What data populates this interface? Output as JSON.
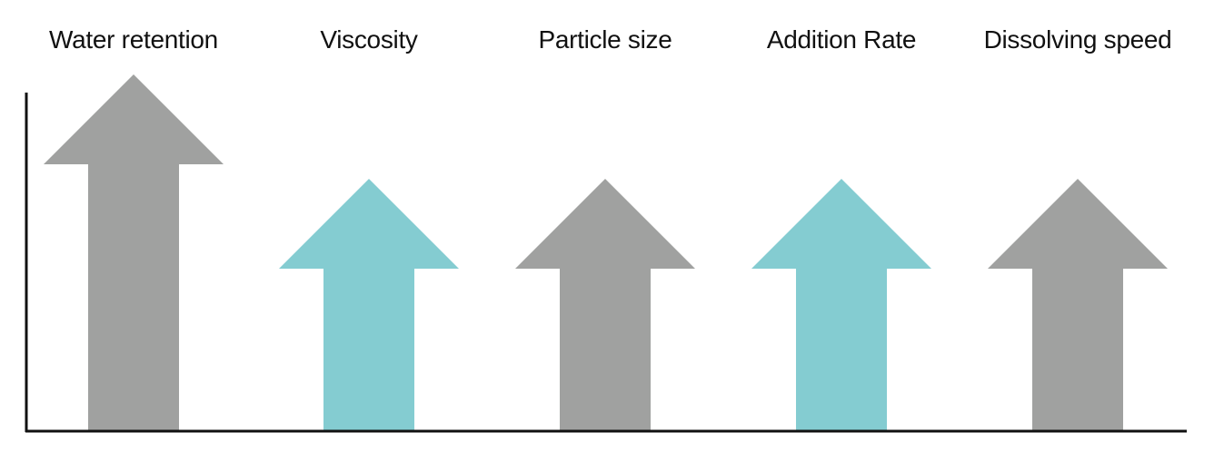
{
  "colors": {
    "gray": "#a0a1a0",
    "teal": "#84ccd1",
    "axis": "#111111"
  },
  "diagram": {
    "items": [
      {
        "label": "Water retention",
        "color": "gray",
        "tall": true
      },
      {
        "label": "Viscosity",
        "color": "teal",
        "tall": false
      },
      {
        "label": "Particle size",
        "color": "gray",
        "tall": false
      },
      {
        "label": "Addition Rate",
        "color": "teal",
        "tall": false
      },
      {
        "label": "Dissolving speed",
        "color": "gray",
        "tall": false
      }
    ]
  }
}
